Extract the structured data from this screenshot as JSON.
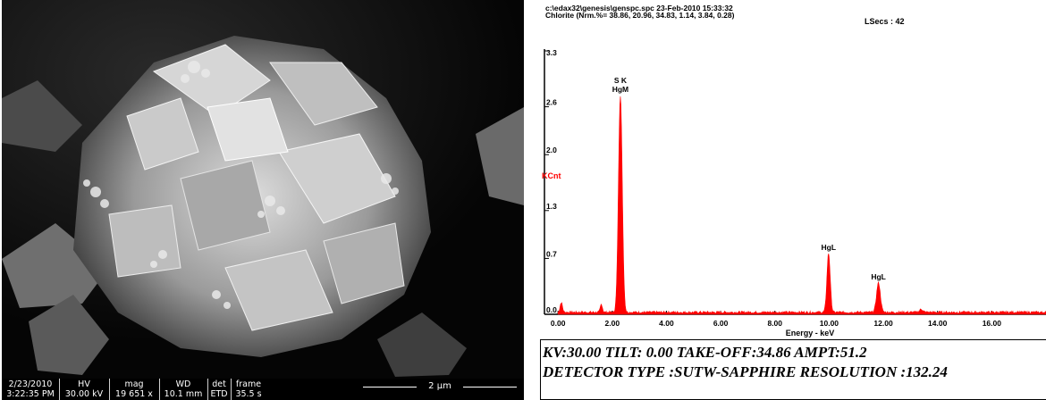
{
  "sem": {
    "databar": {
      "date_time": [
        "2/23/2010",
        "3:22:35 PM"
      ],
      "hv": {
        "label": "HV",
        "value": "30.00 kV"
      },
      "mag": {
        "label": "mag",
        "value": "19 651 x"
      },
      "wd": {
        "label": "WD",
        "value": "10.1 mm"
      },
      "det": {
        "label": "det",
        "value": "ETD"
      },
      "frame": {
        "label": "frame",
        "value": "35.5 s"
      }
    },
    "scale_bar_label": "2 µm"
  },
  "eds": {
    "header_line1": "c:\\edax32\\genesis\\genspc.spc  23-Feb-2010 15:33:32",
    "header_line2": "Chlorite (Nrm.%= 38.86, 20.96, 34.83, 1.14, 3.84, 0.28)",
    "lsecs": "LSecs :  42",
    "footer_line1": "KV:30.00   TILT: 0.00   TAKE-OFF:34.86   AMPT:51.2",
    "footer_line2": "DETECTOR TYPE :SUTW-SAPPHIRE   RESOLUTION :132.24"
  },
  "chart_data": {
    "type": "line",
    "title": "",
    "xlabel": "Energy - keV",
    "ylabel": "KCnt",
    "xlim": [
      -0.5,
      18.0
    ],
    "ylim": [
      0,
      3.3
    ],
    "x_ticks": [
      0.0,
      2.0,
      4.0,
      6.0,
      8.0,
      10.0,
      12.0,
      14.0,
      16.0
    ],
    "x_tick_labels": [
      "0.00",
      "2.00",
      "4.00",
      "6.00",
      "8.00",
      "10.00",
      "12.00",
      "14.00",
      "16.00"
    ],
    "y_ticks": [
      0.0,
      0.7,
      1.3,
      2.0,
      2.6,
      3.3
    ],
    "y_tick_labels": [
      "0.0",
      "0.7",
      "1.3",
      "2.0",
      "2.6",
      "3.3"
    ],
    "series_color": "#ff0000",
    "peaks": [
      {
        "energy": 2.3,
        "height": 2.72,
        "width": 0.07,
        "label": "S K\nHgM"
      },
      {
        "energy": 9.98,
        "height": 0.74,
        "width": 0.06,
        "label": "HgL"
      },
      {
        "energy": 11.82,
        "height": 0.37,
        "width": 0.07,
        "label": "HgL"
      },
      {
        "energy": 1.6,
        "height": 0.1,
        "width": 0.04,
        "label": ""
      },
      {
        "energy": 13.4,
        "height": 0.04,
        "width": 0.06,
        "label": ""
      }
    ],
    "background_level": 0.025
  },
  "colors": {
    "accent": "#ff0000",
    "sem_background": "#000000"
  }
}
